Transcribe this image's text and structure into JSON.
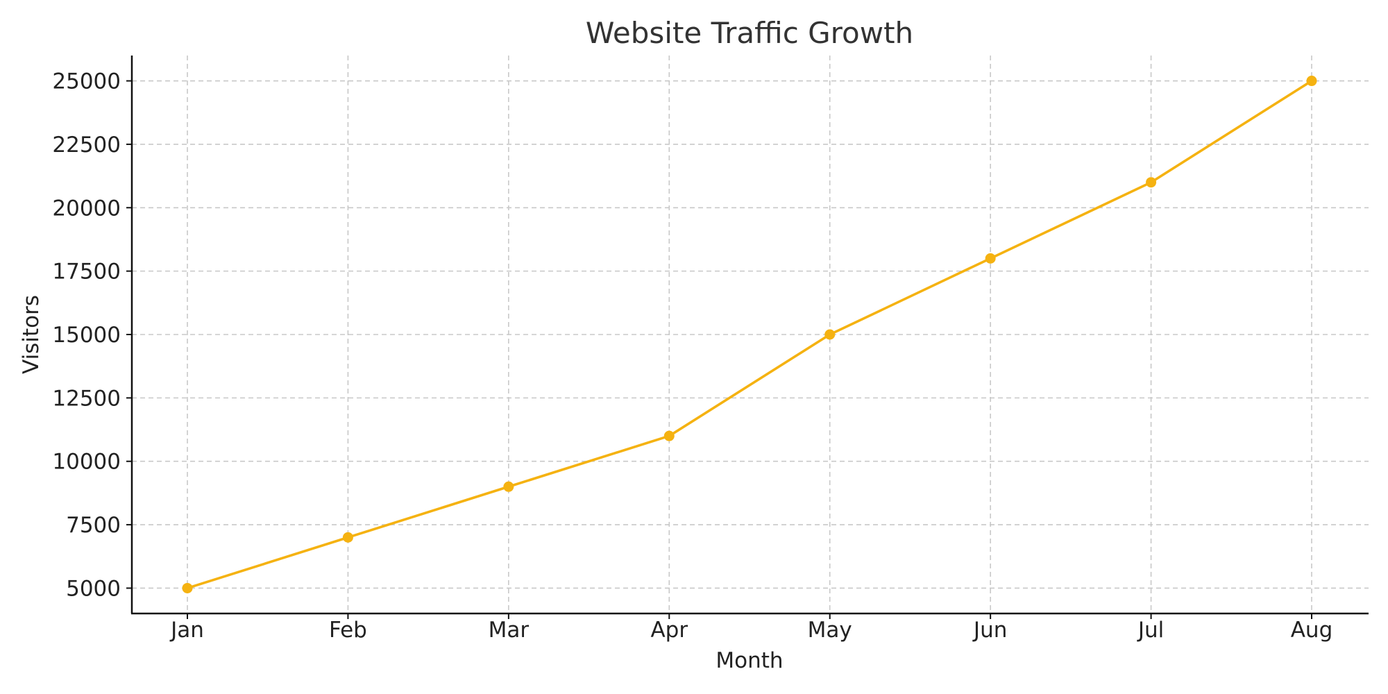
{
  "chart_data": {
    "type": "line",
    "title": "Website Traffic Growth",
    "xlabel": "Month",
    "ylabel": "Visitors",
    "categories": [
      "Jan",
      "Feb",
      "Mar",
      "Apr",
      "May",
      "Jun",
      "Jul",
      "Aug"
    ],
    "series": [
      {
        "values": [
          5000,
          7000,
          9000,
          11000,
          15000,
          18000,
          21000,
          25000
        ],
        "color": "#f5b211",
        "marker": "circle"
      }
    ],
    "yticks": [
      5000,
      7500,
      10000,
      12500,
      15000,
      17500,
      20000,
      22500,
      25000
    ],
    "ylim": [
      4000,
      26000
    ],
    "grid": true,
    "legend": "none"
  }
}
